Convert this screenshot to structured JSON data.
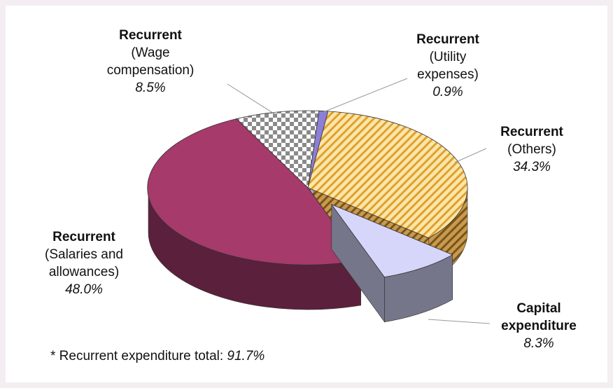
{
  "chart_data": {
    "type": "pie3d",
    "categories": [
      {
        "heading": "Recurrent",
        "detail": "(Utility expenses)"
      },
      {
        "heading": "Recurrent",
        "detail": "(Others)"
      },
      {
        "heading": "Capital expenditure"
      },
      {
        "heading": "Recurrent",
        "detail": "(Salaries and allowances)"
      },
      {
        "heading": "Recurrent",
        "detail": "(Wage compensation)"
      }
    ],
    "values": [
      0.9,
      34.3,
      8.3,
      48.0,
      8.5
    ],
    "value_labels": [
      "0.9%",
      "34.3%",
      "8.3%",
      "48.0%",
      "8.5%"
    ],
    "colors": [
      "#8b7fd6",
      "#f5c64a",
      "#d6d6fa",
      "#a53a6b",
      "#9a9a9a"
    ],
    "patterns": [
      "solid",
      "hatch",
      "solid",
      "solid",
      "checker"
    ],
    "exploded": [
      false,
      false,
      true,
      false,
      false
    ],
    "footnote": {
      "text": "* Recurrent expenditure total:",
      "value_label": "91.7%"
    }
  }
}
